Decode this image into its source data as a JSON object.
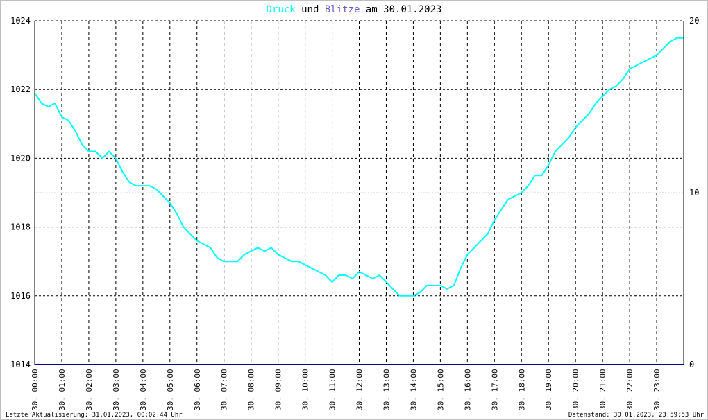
{
  "title": {
    "part1": "Druck",
    "part2": " und ",
    "part3": "Blitze",
    "part4": " am 30.01.2023",
    "color1": "#00ffff",
    "color3": "#6a5acd",
    "color_text": "#000000"
  },
  "footer": {
    "left": "Letzte Aktualisierung: 31.01.2023, 00:02:44 Uhr",
    "right": "Datenstand: 30.01.2023, 23:59:53 Uhr"
  },
  "chart_data": {
    "type": "line",
    "title": "Druck und Blitze am 30.01.2023",
    "x_unit": "hours",
    "xlim": [
      0,
      24
    ],
    "x_ticks": [
      "30. 00:00",
      "30. 01:00",
      "30. 02:00",
      "30. 03:00",
      "30. 04:00",
      "30. 05:00",
      "30. 06:00",
      "30. 07:00",
      "30. 08:00",
      "30. 09:00",
      "30. 10:00",
      "30. 11:00",
      "30. 12:00",
      "30. 13:00",
      "30. 14:00",
      "30. 15:00",
      "30. 16:00",
      "30. 17:00",
      "30. 18:00",
      "30. 19:00",
      "30. 20:00",
      "30. 21:00",
      "30. 22:00",
      "30. 23:00"
    ],
    "y_left": {
      "ylim": [
        1014,
        1024
      ],
      "ticks": [
        1014,
        1016,
        1018,
        1020,
        1022,
        1024
      ]
    },
    "y_right": {
      "ylim": [
        0,
        20
      ],
      "ticks": [
        0,
        10,
        20
      ]
    },
    "grid": true,
    "series": [
      {
        "name": "Druck",
        "axis": "left",
        "color": "#00ffff",
        "x": [
          0,
          0.25,
          0.5,
          0.75,
          1,
          1.25,
          1.5,
          1.75,
          2,
          2.25,
          2.5,
          2.75,
          3,
          3.25,
          3.5,
          3.75,
          4,
          4.25,
          4.5,
          4.75,
          5,
          5.25,
          5.5,
          5.75,
          6,
          6.25,
          6.5,
          6.75,
          7,
          7.25,
          7.5,
          7.75,
          8,
          8.25,
          8.5,
          8.75,
          9,
          9.25,
          9.5,
          9.75,
          10,
          10.25,
          10.5,
          10.75,
          11,
          11.25,
          11.5,
          11.75,
          12,
          12.25,
          12.5,
          12.75,
          13,
          13.25,
          13.5,
          13.75,
          14,
          14.25,
          14.5,
          14.75,
          15,
          15.25,
          15.5,
          15.75,
          16,
          16.25,
          16.5,
          16.75,
          17,
          17.25,
          17.5,
          17.75,
          18,
          18.25,
          18.5,
          18.75,
          19,
          19.25,
          19.5,
          19.75,
          20,
          20.25,
          20.5,
          20.75,
          21,
          21.25,
          21.5,
          21.75,
          22,
          22.25,
          22.5,
          22.75,
          23,
          23.25,
          23.5,
          23.75,
          24
        ],
        "y": [
          1021.9,
          1021.6,
          1021.5,
          1021.6,
          1021.2,
          1021.1,
          1020.8,
          1020.4,
          1020.2,
          1020.2,
          1020.0,
          1020.2,
          1020.0,
          1019.6,
          1019.3,
          1019.2,
          1019.2,
          1019.2,
          1019.1,
          1018.9,
          1018.7,
          1018.4,
          1018.0,
          1017.8,
          1017.6,
          1017.5,
          1017.4,
          1017.1,
          1017.0,
          1017.0,
          1017.0,
          1017.2,
          1017.3,
          1017.4,
          1017.3,
          1017.4,
          1017.2,
          1017.1,
          1017.0,
          1017.0,
          1016.9,
          1016.8,
          1016.7,
          1016.6,
          1016.4,
          1016.6,
          1016.6,
          1016.5,
          1016.7,
          1016.6,
          1016.5,
          1016.6,
          1016.4,
          1016.2,
          1016.0,
          1016.0,
          1016.0,
          1016.1,
          1016.3,
          1016.3,
          1016.3,
          1016.2,
          1016.3,
          1016.8,
          1017.2,
          1017.4,
          1017.6,
          1017.8,
          1018.2,
          1018.5,
          1018.8,
          1018.9,
          1019.0,
          1019.2,
          1019.5,
          1019.5,
          1019.8,
          1020.2,
          1020.4,
          1020.6,
          1020.9,
          1021.1,
          1021.3,
          1021.6,
          1021.8,
          1022.0,
          1022.1,
          1022.3,
          1022.6,
          1022.7,
          1022.8,
          1022.9,
          1023.0,
          1023.2,
          1023.4,
          1023.5,
          1023.5
        ],
        "line_width": 2
      },
      {
        "name": "Blitze",
        "axis": "right",
        "color": "#000080",
        "x": [
          0,
          24
        ],
        "y": [
          0,
          0
        ],
        "line_width": 2
      }
    ]
  }
}
